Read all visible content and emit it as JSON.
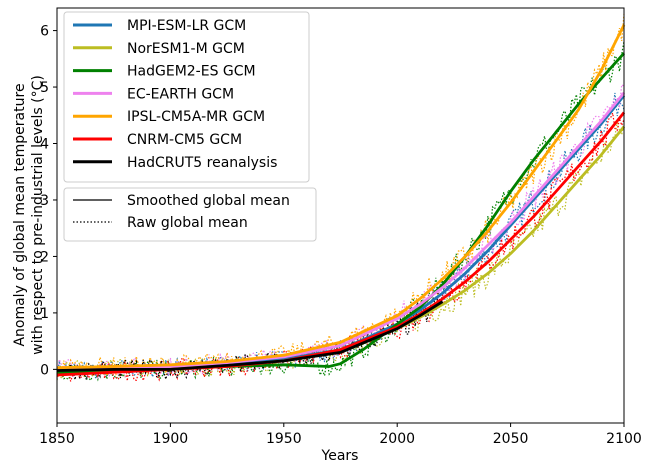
{
  "chart_data": {
    "type": "line",
    "title": "",
    "xlabel": "Years",
    "ylabel_line1": "Anomaly of global mean temperature",
    "ylabel_line2": "with respect to pre-industrial levels (°C)",
    "xlim": [
      1850,
      2100
    ],
    "ylim": [
      -0.95,
      6.4
    ],
    "x_ticks": [
      1850,
      1900,
      1950,
      2000,
      2050,
      2100
    ],
    "y_ticks": [
      0,
      1,
      2,
      3,
      4,
      5,
      6
    ],
    "grid": false,
    "legend_placement": "top-left",
    "series": [
      {
        "name": "MPI-ESM-LR GCM",
        "color": "#1f77b4",
        "x": [
          1850,
          1875,
          1900,
          1925,
          1950,
          1975,
          2000,
          2010,
          2020,
          2030,
          2040,
          2050,
          2060,
          2070,
          2080,
          2090,
          2100
        ],
        "y": [
          0.0,
          0.0,
          0.03,
          0.08,
          0.18,
          0.35,
          0.8,
          1.05,
          1.35,
          1.7,
          2.1,
          2.55,
          3.0,
          3.45,
          3.9,
          4.35,
          4.85
        ]
      },
      {
        "name": "NorESM1-M GCM",
        "color": "#bcbd22",
        "x": [
          1850,
          1875,
          1900,
          1925,
          1950,
          1975,
          2000,
          2010,
          2020,
          2030,
          2040,
          2050,
          2060,
          2070,
          2080,
          2090,
          2100
        ],
        "y": [
          -0.02,
          0.0,
          0.02,
          0.06,
          0.15,
          0.3,
          0.72,
          0.92,
          1.15,
          1.4,
          1.7,
          2.05,
          2.45,
          2.9,
          3.35,
          3.8,
          4.3
        ]
      },
      {
        "name": "HadGEM2-ES GCM",
        "color": "#008000",
        "x": [
          1850,
          1875,
          1900,
          1925,
          1950,
          1970,
          1975,
          1985,
          2000,
          2010,
          2020,
          2030,
          2040,
          2050,
          2060,
          2070,
          2080,
          2090,
          2100
        ],
        "y": [
          -0.05,
          -0.03,
          0.0,
          0.05,
          0.08,
          0.05,
          0.1,
          0.35,
          0.8,
          1.1,
          1.5,
          2.0,
          2.55,
          3.15,
          3.7,
          4.2,
          4.7,
          5.15,
          5.6
        ]
      },
      {
        "name": "EC-EARTH GCM",
        "color": "#ee82ee",
        "x": [
          1850,
          1875,
          1900,
          1925,
          1950,
          1975,
          2000,
          2010,
          2020,
          2030,
          2040,
          2050,
          2060,
          2070,
          2080,
          2090,
          2100
        ],
        "y": [
          0.02,
          0.03,
          0.05,
          0.12,
          0.22,
          0.42,
          0.9,
          1.15,
          1.45,
          1.8,
          2.2,
          2.6,
          3.05,
          3.5,
          3.95,
          4.4,
          4.9
        ]
      },
      {
        "name": "IPSL-CM5A-MR GCM",
        "color": "#ffa500",
        "x": [
          1850,
          1875,
          1900,
          1925,
          1950,
          1975,
          2000,
          2010,
          2020,
          2030,
          2040,
          2050,
          2060,
          2070,
          2080,
          2090,
          2100
        ],
        "y": [
          0.03,
          0.05,
          0.08,
          0.14,
          0.25,
          0.48,
          0.95,
          1.25,
          1.6,
          2.0,
          2.45,
          2.95,
          3.5,
          4.05,
          4.6,
          5.3,
          6.1
        ]
      },
      {
        "name": "CNRM-CM5 GCM",
        "color": "#ff0000",
        "x": [
          1850,
          1875,
          1900,
          1925,
          1950,
          1975,
          2000,
          2010,
          2020,
          2030,
          2040,
          2050,
          2060,
          2070,
          2080,
          2090,
          2100
        ],
        "y": [
          -0.1,
          -0.05,
          0.0,
          0.05,
          0.15,
          0.35,
          0.75,
          0.98,
          1.25,
          1.55,
          1.9,
          2.3,
          2.7,
          3.15,
          3.6,
          4.05,
          4.55
        ]
      },
      {
        "name": "HadCRUT5 reanalysis",
        "color": "#000000",
        "x": [
          1850,
          1875,
          1900,
          1925,
          1950,
          1975,
          2000,
          2010,
          2020
        ],
        "y": [
          -0.02,
          0.0,
          0.0,
          0.07,
          0.15,
          0.3,
          0.72,
          0.95,
          1.2
        ]
      }
    ],
    "style_legend": [
      {
        "label": "Smoothed global mean",
        "style": "solid"
      },
      {
        "label": "Raw global mean",
        "style": "dotted"
      }
    ]
  }
}
